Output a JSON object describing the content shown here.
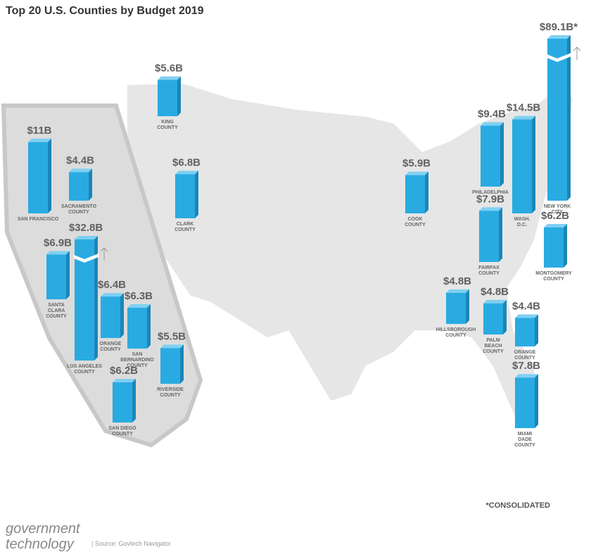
{
  "chart_data": {
    "type": "map-bar",
    "title": "Top 20 U.S. Counties by Budget 2019",
    "note": "*CONSOLIDATED",
    "brand": [
      "government",
      "technology"
    ],
    "source": "| Source: Govtech Navigator",
    "color": "#29abe2",
    "categories": [
      [
        "SAN FRANCISCO"
      ],
      [
        "SACRAMENTO",
        "COUNTY"
      ],
      [
        "KING",
        "COUNTY"
      ],
      [
        "CLARK",
        "COUNTY"
      ],
      [
        "LOS ANGELES",
        "COUNTY"
      ],
      [
        "SANTA",
        "CLARA",
        "COUNTY"
      ],
      [
        "ORANGE",
        "COUNTY"
      ],
      [
        "SAN",
        "BERNARDINO",
        "COUNTY"
      ],
      [
        "RIVERSIDE",
        "COUNTY"
      ],
      [
        "SAN DIEGO",
        "COUNTY"
      ],
      [
        "COOK",
        "COUNTY"
      ],
      [
        "PHILADELPHIA"
      ],
      [
        "WASH.",
        "D.C."
      ],
      [
        "NEW YORK",
        "CITY"
      ],
      [
        "FAIRFAX",
        "COUNTY"
      ],
      [
        "MONTGOMERY",
        "COUNTY"
      ],
      [
        "HILLSBOROUGH",
        "COUNTY"
      ],
      [
        "PALM",
        "BEACH",
        "COUNTY"
      ],
      [
        "ORANGE",
        "COUNTY"
      ],
      [
        "MIAMI",
        "DADE",
        "COUNTY"
      ]
    ],
    "values": [
      11,
      4.4,
      5.6,
      6.8,
      32.8,
      6.9,
      6.4,
      6.3,
      5.5,
      6.2,
      5.9,
      9.4,
      14.5,
      89.1,
      7.9,
      6.2,
      4.8,
      4.8,
      4.4,
      7.8
    ],
    "value_labels": [
      "$11B",
      "$4.4B",
      "$5.6B",
      "$6.8B",
      "$32.8B",
      "$6.9B",
      "$6.4B",
      "$6.3B",
      "$5.5B",
      "$6.2B",
      "$5.9B",
      "$9.4B",
      "$14.5B",
      "$89.1B*",
      "$7.9B",
      "$6.2B",
      "$4.8B",
      "$4.8B",
      "$4.4B",
      "$7.8B"
    ]
  }
}
